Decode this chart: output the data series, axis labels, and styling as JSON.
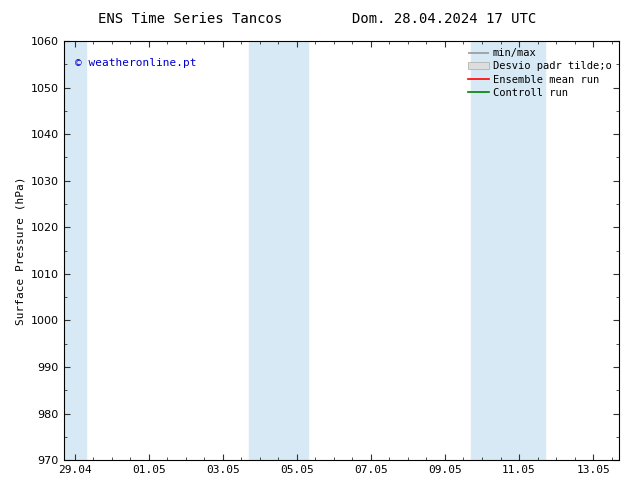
{
  "title_left": "ENS Time Series Tancos",
  "title_right": "Dom. 28.04.2024 17 UTC",
  "ylabel": "Surface Pressure (hPa)",
  "ylim": [
    970,
    1060
  ],
  "yticks": [
    970,
    980,
    990,
    1000,
    1010,
    1020,
    1030,
    1040,
    1050,
    1060
  ],
  "x_labels": [
    "29.04",
    "01.05",
    "03.05",
    "05.05",
    "07.05",
    "09.05",
    "11.05",
    "13.05"
  ],
  "x_positions": [
    0.0,
    2.0,
    4.0,
    6.0,
    8.0,
    10.0,
    12.0,
    14.0
  ],
  "xlim": [
    -0.3,
    14.7
  ],
  "shaded_bands": [
    {
      "xmin": 4.7,
      "xmax": 6.3
    },
    {
      "xmin": 10.7,
      "xmax": 12.7
    }
  ],
  "left_shaded": {
    "xmin": -0.3,
    "xmax": 0.3
  },
  "band_color": "#d6e9f5",
  "watermark": "© weatheronline.pt",
  "background_color": "#ffffff",
  "grid_color": "#bbbbbb",
  "axis_label_fontsize": 8,
  "title_fontsize": 10,
  "tick_fontsize": 8,
  "legend_fontsize": 7.5
}
